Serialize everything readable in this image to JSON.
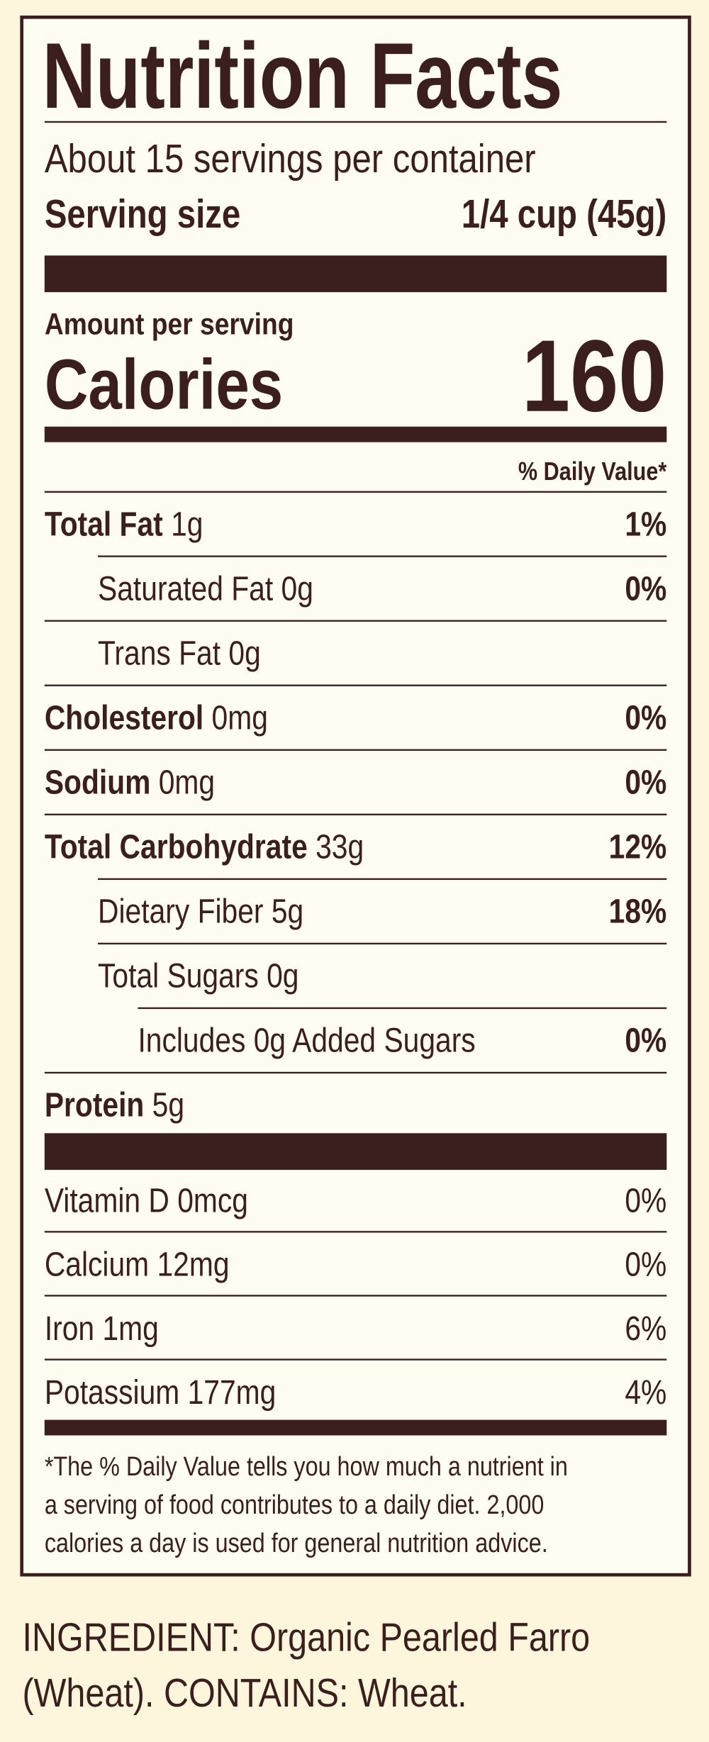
{
  "title": "Nutrition Facts",
  "servings_per_container": "About 15 servings per container",
  "serving_size": {
    "label": "Serving size",
    "value": "1/4 cup (45g)"
  },
  "amount_per_serving": "Amount per serving",
  "calories": {
    "label": "Calories",
    "value": 160
  },
  "daily_value_header": "% Daily Value*",
  "nutrients": [
    {
      "name": "Total Fat",
      "amount": "1g",
      "dv": "1%"
    },
    {
      "name": "Saturated Fat",
      "amount": "0g",
      "dv": "0%"
    },
    {
      "name": "Trans Fat",
      "amount": "0g"
    },
    {
      "name": "Cholesterol",
      "amount": "0mg",
      "dv": "0%"
    },
    {
      "name": "Sodium",
      "amount": "0mg",
      "dv": "0%"
    },
    {
      "name": "Total Carbohydrate",
      "amount": "33g",
      "dv": "12%"
    },
    {
      "name": "Dietary Fiber",
      "amount": "5g",
      "dv": "18%"
    },
    {
      "name": "Total Sugars",
      "amount": "0g"
    },
    {
      "name": "Includes 0g Added Sugars",
      "dv": "0%"
    },
    {
      "name": "Protein",
      "amount": "5g"
    }
  ],
  "vitamins": [
    {
      "name": "Vitamin D",
      "amount": "0mcg",
      "dv": "0%"
    },
    {
      "name": "Calcium",
      "amount": "12mg",
      "dv": "0%"
    },
    {
      "name": "Iron",
      "amount": "1mg",
      "dv": "6%"
    },
    {
      "name": "Potassium",
      "amount": "177mg",
      "dv": "4%"
    }
  ],
  "footnote": [
    "*The % Daily Value tells you how much a nutrient in",
    "a serving of food contributes to a daily diet. 2,000",
    "calories a day is used for general nutrition advice."
  ],
  "ingredients": [
    "INGREDIENT: Organic Pearled Farro",
    "(Wheat). CONTAINS: Wheat."
  ]
}
